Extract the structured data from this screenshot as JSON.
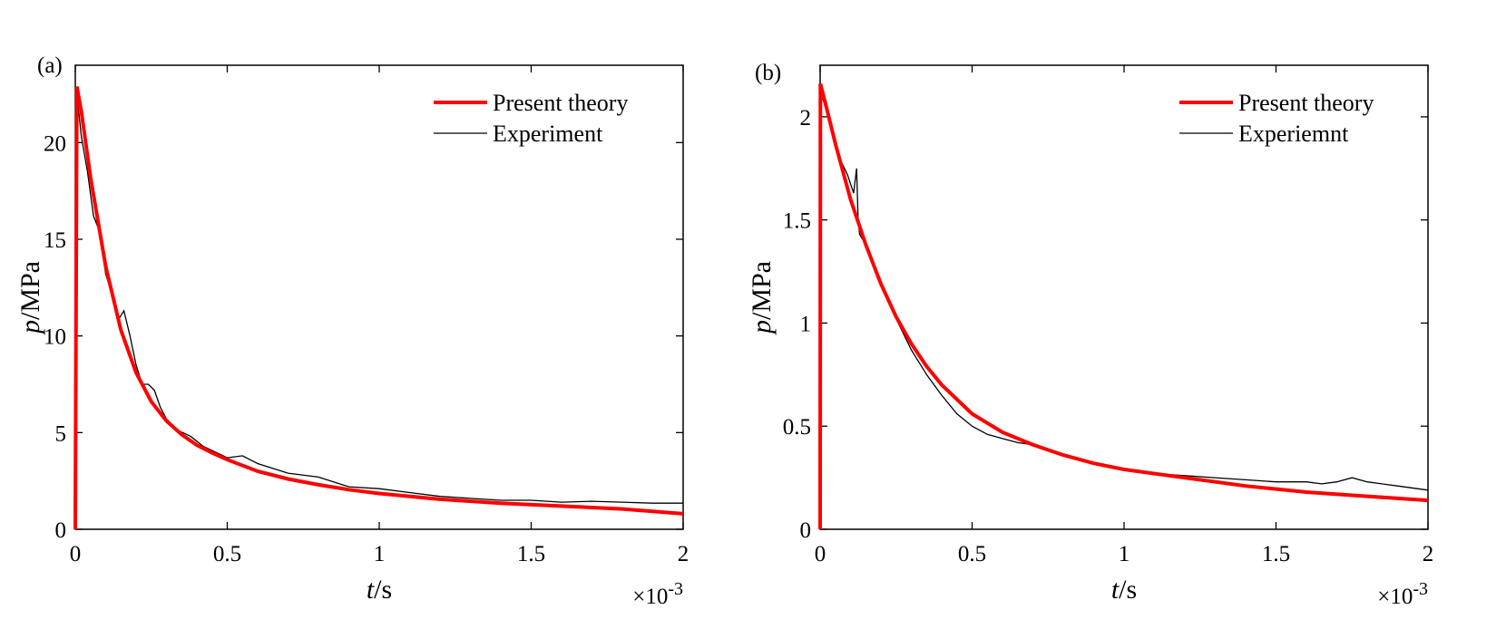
{
  "chart_data": [
    {
      "type": "line",
      "panel_label": "(a)",
      "xlabel_var": "t",
      "xlabel_unit": "/s",
      "ylabel_var": "p",
      "ylabel_unit": "/MPa",
      "x_multiplier_base": "×10",
      "x_multiplier_exp": "-3",
      "xlim": [
        0,
        2
      ],
      "ylim": [
        0,
        24
      ],
      "xticks": [
        0,
        0.5,
        1,
        1.5,
        2
      ],
      "xtick_labels": [
        "0",
        "0.5",
        "1",
        "1.5",
        "2"
      ],
      "yticks": [
        0,
        5,
        10,
        15,
        20
      ],
      "ytick_labels": [
        "0",
        "5",
        "10",
        "15",
        "20"
      ],
      "grid": false,
      "legend_position": "top-right",
      "series": [
        {
          "name": "Present theory",
          "color": "#ff0000",
          "x": [
            0,
            0.005,
            0.02,
            0.05,
            0.1,
            0.15,
            0.2,
            0.25,
            0.3,
            0.35,
            0.4,
            0.45,
            0.5,
            0.6,
            0.7,
            0.8,
            0.9,
            1.0,
            1.2,
            1.4,
            1.6,
            1.8,
            2.0
          ],
          "y": [
            0,
            22.9,
            21.6,
            18.2,
            13.6,
            10.3,
            8.1,
            6.6,
            5.6,
            4.9,
            4.35,
            3.95,
            3.6,
            3.0,
            2.6,
            2.3,
            2.05,
            1.85,
            1.55,
            1.35,
            1.2,
            1.05,
            0.8
          ]
        },
        {
          "name": "Experiment",
          "color": "#000000",
          "x": [
            0,
            0.005,
            0.01,
            0.02,
            0.04,
            0.06,
            0.08,
            0.1,
            0.12,
            0.14,
            0.16,
            0.18,
            0.2,
            0.22,
            0.24,
            0.26,
            0.28,
            0.3,
            0.34,
            0.38,
            0.42,
            0.46,
            0.5,
            0.55,
            0.6,
            0.7,
            0.8,
            0.9,
            1.0,
            1.1,
            1.2,
            1.3,
            1.4,
            1.5,
            1.6,
            1.7,
            1.8,
            1.9,
            2.0
          ],
          "y": [
            0,
            22.4,
            21.8,
            20.3,
            18.5,
            16.2,
            15.4,
            13.2,
            12.2,
            10.8,
            11.3,
            10.0,
            8.5,
            7.5,
            7.5,
            7.2,
            6.3,
            5.7,
            5.1,
            4.8,
            4.3,
            4.0,
            3.7,
            3.8,
            3.4,
            2.9,
            2.7,
            2.2,
            2.1,
            1.9,
            1.7,
            1.6,
            1.5,
            1.5,
            1.4,
            1.45,
            1.4,
            1.35,
            1.35
          ]
        }
      ]
    },
    {
      "type": "line",
      "panel_label": "(b)",
      "xlabel_var": "t",
      "xlabel_unit": "/s",
      "ylabel_var": "p",
      "ylabel_unit": "/MPa",
      "x_multiplier_base": "×10",
      "x_multiplier_exp": "-3",
      "xlim": [
        0,
        2
      ],
      "ylim": [
        0,
        2.25
      ],
      "xticks": [
        0,
        0.5,
        1,
        1.5,
        2
      ],
      "xtick_labels": [
        "0",
        "0.5",
        "1",
        "1.5",
        "2"
      ],
      "yticks": [
        0,
        0.5,
        1,
        1.5,
        2
      ],
      "ytick_labels": [
        "0",
        "0.5",
        "1",
        "1.5",
        "2"
      ],
      "grid": false,
      "legend_position": "top-right",
      "series": [
        {
          "name": "Present theory",
          "color": "#ff0000",
          "x": [
            0,
            0.001,
            0.02,
            0.05,
            0.1,
            0.15,
            0.2,
            0.25,
            0.3,
            0.35,
            0.4,
            0.5,
            0.6,
            0.7,
            0.8,
            0.9,
            1.0,
            1.2,
            1.4,
            1.6,
            1.8,
            2.0
          ],
          "y": [
            0,
            2.16,
            2.05,
            1.87,
            1.6,
            1.38,
            1.19,
            1.03,
            0.9,
            0.79,
            0.7,
            0.56,
            0.47,
            0.41,
            0.36,
            0.32,
            0.29,
            0.25,
            0.21,
            0.18,
            0.16,
            0.14
          ]
        },
        {
          "name": "Experiemnt",
          "color": "#000000",
          "x": [
            0,
            0.002,
            0.01,
            0.03,
            0.05,
            0.07,
            0.09,
            0.11,
            0.12,
            0.125,
            0.13,
            0.15,
            0.17,
            0.2,
            0.25,
            0.3,
            0.35,
            0.4,
            0.45,
            0.5,
            0.55,
            0.6,
            0.65,
            0.7,
            0.8,
            0.9,
            1.0,
            1.1,
            1.2,
            1.3,
            1.4,
            1.5,
            1.6,
            1.65,
            1.7,
            1.75,
            1.8,
            1.9,
            2.0
          ],
          "y": [
            0,
            2.1,
            2.08,
            2.0,
            1.85,
            1.78,
            1.72,
            1.63,
            1.75,
            1.5,
            1.43,
            1.38,
            1.3,
            1.2,
            1.02,
            0.87,
            0.75,
            0.65,
            0.56,
            0.5,
            0.46,
            0.44,
            0.42,
            0.41,
            0.36,
            0.32,
            0.29,
            0.27,
            0.26,
            0.25,
            0.24,
            0.23,
            0.23,
            0.22,
            0.23,
            0.25,
            0.23,
            0.21,
            0.19
          ]
        }
      ]
    }
  ]
}
